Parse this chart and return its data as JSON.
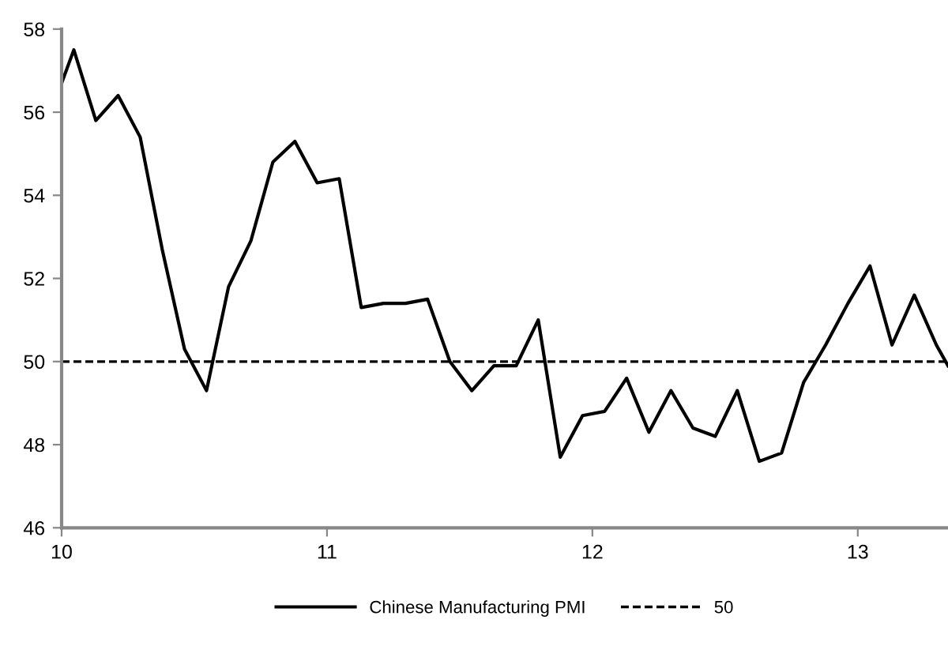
{
  "chart_data": {
    "type": "line",
    "xlim": [
      10,
      13.34
    ],
    "xticks": [
      10,
      11,
      12,
      13
    ],
    "ylim": [
      46,
      58
    ],
    "yticks": [
      46,
      48,
      50,
      52,
      54,
      56,
      58
    ],
    "grid": false,
    "legend": "bottom",
    "line_style": "solid",
    "marker": "none",
    "series": [
      {
        "name": "Chinese Manufacturing PMI",
        "color": "#000000",
        "x": [
          10.0,
          10.046,
          10.129,
          10.213,
          10.296,
          10.379,
          10.463,
          10.546,
          10.629,
          10.713,
          10.796,
          10.879,
          10.963,
          11.046,
          11.129,
          11.213,
          11.296,
          11.379,
          11.463,
          11.546,
          11.629,
          11.713,
          11.796,
          11.879,
          11.963,
          12.046,
          12.129,
          12.213,
          12.296,
          12.379,
          12.463,
          12.546,
          12.629,
          12.713,
          12.796,
          12.879,
          12.963,
          13.046,
          13.129,
          13.213,
          13.296,
          13.34
        ],
        "values": [
          56.7,
          57.5,
          55.8,
          56.4,
          55.4,
          52.7,
          50.3,
          49.3,
          51.8,
          52.9,
          54.8,
          55.3,
          54.3,
          54.4,
          51.3,
          51.4,
          51.4,
          51.5,
          50.0,
          49.3,
          49.9,
          49.9,
          51.0,
          47.7,
          48.7,
          48.8,
          49.6,
          48.3,
          49.3,
          48.4,
          48.2,
          49.3,
          47.6,
          47.8,
          49.5,
          50.4,
          51.4,
          52.3,
          50.4,
          51.6,
          50.4,
          49.9
        ]
      }
    ],
    "ref_lines": [
      {
        "axis": "y",
        "value": 50,
        "label": "50",
        "color": "#000000",
        "line_style": "dashed"
      }
    ]
  }
}
